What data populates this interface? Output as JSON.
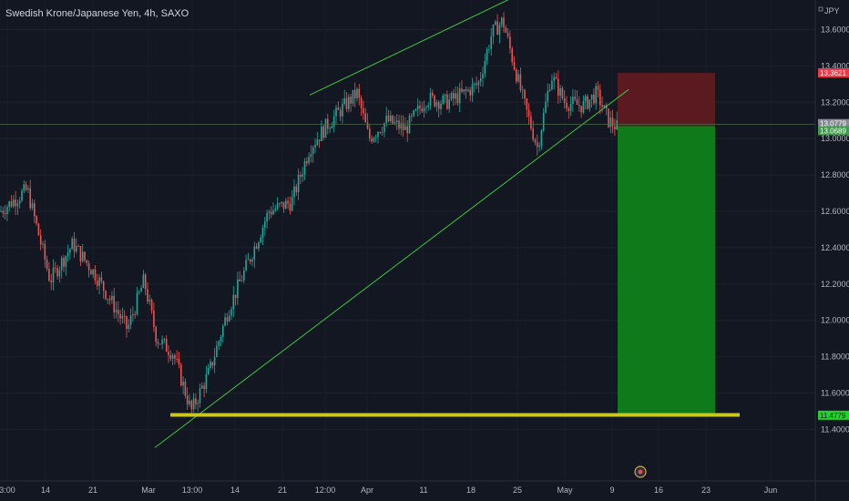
{
  "header": {
    "title": "Swedish Krone/Japanese Yen, 4h, SAXO"
  },
  "price_axis": {
    "currency_label": "JPY"
  },
  "colors": {
    "background": "#131722",
    "bull": "#26a69a",
    "bear": "#ef5350",
    "trendline": "#3ec53e",
    "support": "#c8c81e",
    "stop_zone": "#5b1a20",
    "target_zone": "#0f7a1a",
    "stop_tag": "#f23645",
    "current_tag": "#878a94",
    "entry_tag": "#3e9b4a",
    "target_tag": "#22d12a"
  },
  "chart_data": {
    "type": "candlestick",
    "symbol": "Swedish Krone/Japanese Yen",
    "interval": "4h",
    "source": "SAXO",
    "x_ticks": [
      "3:00",
      "14",
      "21",
      "Mar",
      "13:00",
      "14",
      "21",
      "12:00",
      "Apr",
      "11",
      "18",
      "25",
      "May",
      "9",
      "16",
      "23",
      "Jun"
    ],
    "y_ticks": [
      "13.6000",
      "13.4000",
      "13.2000",
      "13.0000",
      "12.8000",
      "12.6000",
      "12.4000",
      "12.2000",
      "12.0000",
      "11.8000",
      "11.6000",
      "11.4000"
    ],
    "ylim": [
      11.28,
      13.78
    ],
    "price_path": [
      [
        0,
        12.6
      ],
      [
        30,
        12.72
      ],
      [
        55,
        12.22
      ],
      [
        80,
        12.42
      ],
      [
        105,
        12.25
      ],
      [
        125,
        12.08
      ],
      [
        140,
        11.95
      ],
      [
        158,
        12.22
      ],
      [
        172,
        11.9
      ],
      [
        190,
        11.82
      ],
      [
        210,
        11.5
      ],
      [
        230,
        11.72
      ],
      [
        250,
        12.05
      ],
      [
        275,
        12.35
      ],
      [
        295,
        12.6
      ],
      [
        320,
        12.65
      ],
      [
        340,
        12.95
      ],
      [
        360,
        13.08
      ],
      [
        378,
        13.18
      ],
      [
        392,
        13.25
      ],
      [
        405,
        13.0
      ],
      [
        425,
        13.1
      ],
      [
        445,
        13.05
      ],
      [
        468,
        13.22
      ],
      [
        490,
        13.2
      ],
      [
        510,
        13.25
      ],
      [
        525,
        13.3
      ],
      [
        540,
        13.58
      ],
      [
        552,
        13.65
      ],
      [
        562,
        13.45
      ],
      [
        575,
        13.2
      ],
      [
        590,
        12.95
      ],
      [
        605,
        13.35
      ],
      [
        620,
        13.2
      ],
      [
        640,
        13.18
      ],
      [
        655,
        13.25
      ],
      [
        668,
        13.1
      ],
      [
        678,
        13.06
      ]
    ],
    "trendlines": [
      {
        "name": "upper-channel",
        "points": [
          [
            340,
            13.24
          ],
          [
            635,
            13.95
          ]
        ]
      },
      {
        "name": "lower-channel",
        "points": [
          [
            170,
            11.3
          ],
          [
            690,
            13.27
          ]
        ]
      }
    ],
    "support_level": 11.48,
    "position": {
      "type": "short",
      "entry": 13.0689,
      "stop": 13.3621,
      "target": 11.4779,
      "current_price": 13.0779,
      "x_start": 678,
      "x_end": 785
    },
    "price_tags": [
      {
        "name": "stop",
        "label": "13.3621",
        "value": 13.3621
      },
      {
        "name": "current",
        "label": "13.0779",
        "value": 13.0779
      },
      {
        "name": "entry",
        "label": "13.0689",
        "value": 13.0689
      },
      {
        "name": "target",
        "label": "11.4779",
        "value": 11.4779
      }
    ]
  }
}
